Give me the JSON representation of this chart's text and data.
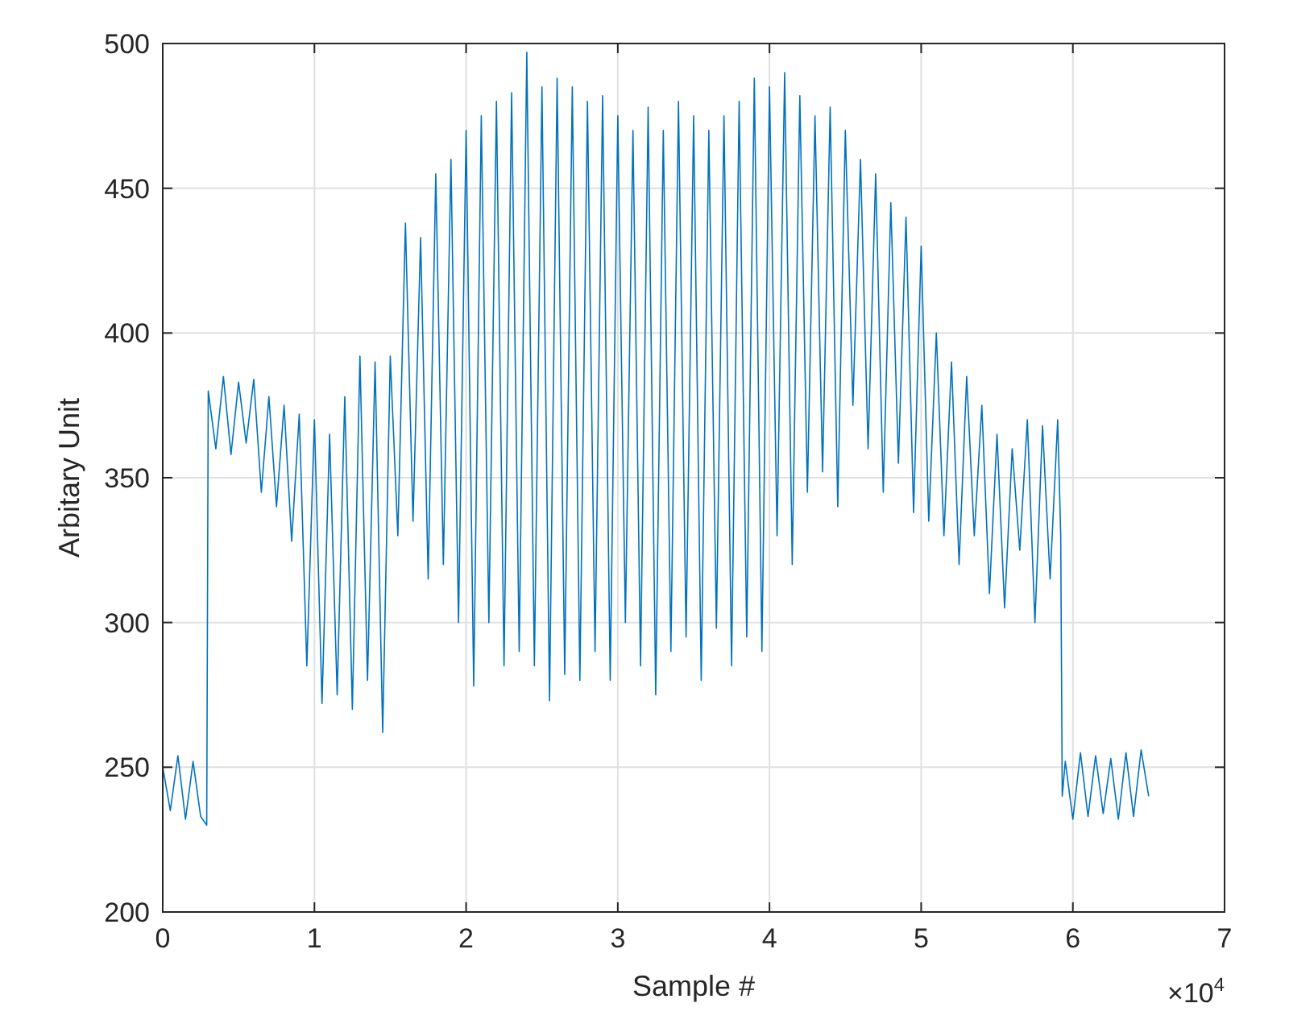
{
  "chart_data": {
    "type": "line",
    "xlabel": "Sample #",
    "ylabel": "Arbitary Unit",
    "annotations": [
      "×10$^{4}$"
    ],
    "xlim": [
      0,
      7
    ],
    "ylim": [
      200,
      500
    ],
    "xticks": [
      0,
      1,
      2,
      3,
      4,
      5,
      6,
      7
    ],
    "yticks": [
      200,
      250,
      300,
      350,
      400,
      450,
      500
    ],
    "grid": true,
    "line_style": "solid",
    "series": [
      {
        "color": "#0072bd",
        "x": [
          0,
          0.05,
          0.1,
          0.15,
          0.2,
          0.25,
          0.29,
          0.3,
          0.35,
          0.4,
          0.45,
          0.5,
          0.55,
          0.6,
          0.65,
          0.7,
          0.75,
          0.8,
          0.85,
          0.9,
          0.95,
          1,
          1.05,
          1.1,
          1.15,
          1.2,
          1.25,
          1.3,
          1.35,
          1.4,
          1.45,
          1.5,
          1.55,
          1.6,
          1.65,
          1.7,
          1.75,
          1.8,
          1.85,
          1.9,
          1.95,
          2,
          2.05,
          2.1,
          2.15,
          2.2,
          2.25,
          2.3,
          2.35,
          2.4,
          2.45,
          2.5,
          2.55,
          2.6,
          2.65,
          2.7,
          2.75,
          2.8,
          2.85,
          2.9,
          2.95,
          3,
          3.05,
          3.1,
          3.15,
          3.2,
          3.25,
          3.3,
          3.35,
          3.4,
          3.45,
          3.5,
          3.55,
          3.6,
          3.65,
          3.7,
          3.75,
          3.8,
          3.85,
          3.9,
          3.95,
          4,
          4.05,
          4.1,
          4.15,
          4.2,
          4.25,
          4.3,
          4.35,
          4.4,
          4.45,
          4.5,
          4.55,
          4.6,
          4.65,
          4.7,
          4.75,
          4.8,
          4.85,
          4.9,
          4.95,
          5,
          5.05,
          5.1,
          5.15,
          5.2,
          5.25,
          5.3,
          5.35,
          5.4,
          5.45,
          5.5,
          5.55,
          5.6,
          5.65,
          5.7,
          5.75,
          5.8,
          5.85,
          5.9,
          5.92,
          5.93,
          5.95,
          6,
          6.05,
          6.1,
          6.15,
          6.2,
          6.25,
          6.3,
          6.35,
          6.4,
          6.45,
          6.5
        ],
        "values": [
          250,
          235,
          254,
          232,
          252,
          233,
          230,
          380,
          360,
          385,
          358,
          383,
          362,
          384,
          345,
          378,
          340,
          375,
          328,
          372,
          285,
          370,
          272,
          365,
          275,
          378,
          270,
          392,
          280,
          390,
          262,
          392,
          330,
          438,
          335,
          433,
          315,
          455,
          320,
          460,
          300,
          470,
          278,
          475,
          300,
          480,
          285,
          483,
          290,
          497,
          285,
          485,
          273,
          488,
          282,
          485,
          280,
          480,
          290,
          482,
          280,
          475,
          300,
          470,
          285,
          478,
          275,
          470,
          290,
          480,
          295,
          475,
          280,
          470,
          298,
          475,
          285,
          480,
          295,
          488,
          290,
          485,
          330,
          490,
          320,
          482,
          345,
          475,
          352,
          478,
          340,
          470,
          375,
          460,
          360,
          455,
          345,
          445,
          355,
          440,
          338,
          430,
          335,
          400,
          330,
          390,
          320,
          385,
          330,
          375,
          310,
          365,
          305,
          360,
          325,
          370,
          300,
          368,
          315,
          370,
          330,
          240,
          252,
          232,
          255,
          233,
          254,
          234,
          253,
          232,
          255,
          233,
          256,
          240
        ]
      }
    ]
  }
}
